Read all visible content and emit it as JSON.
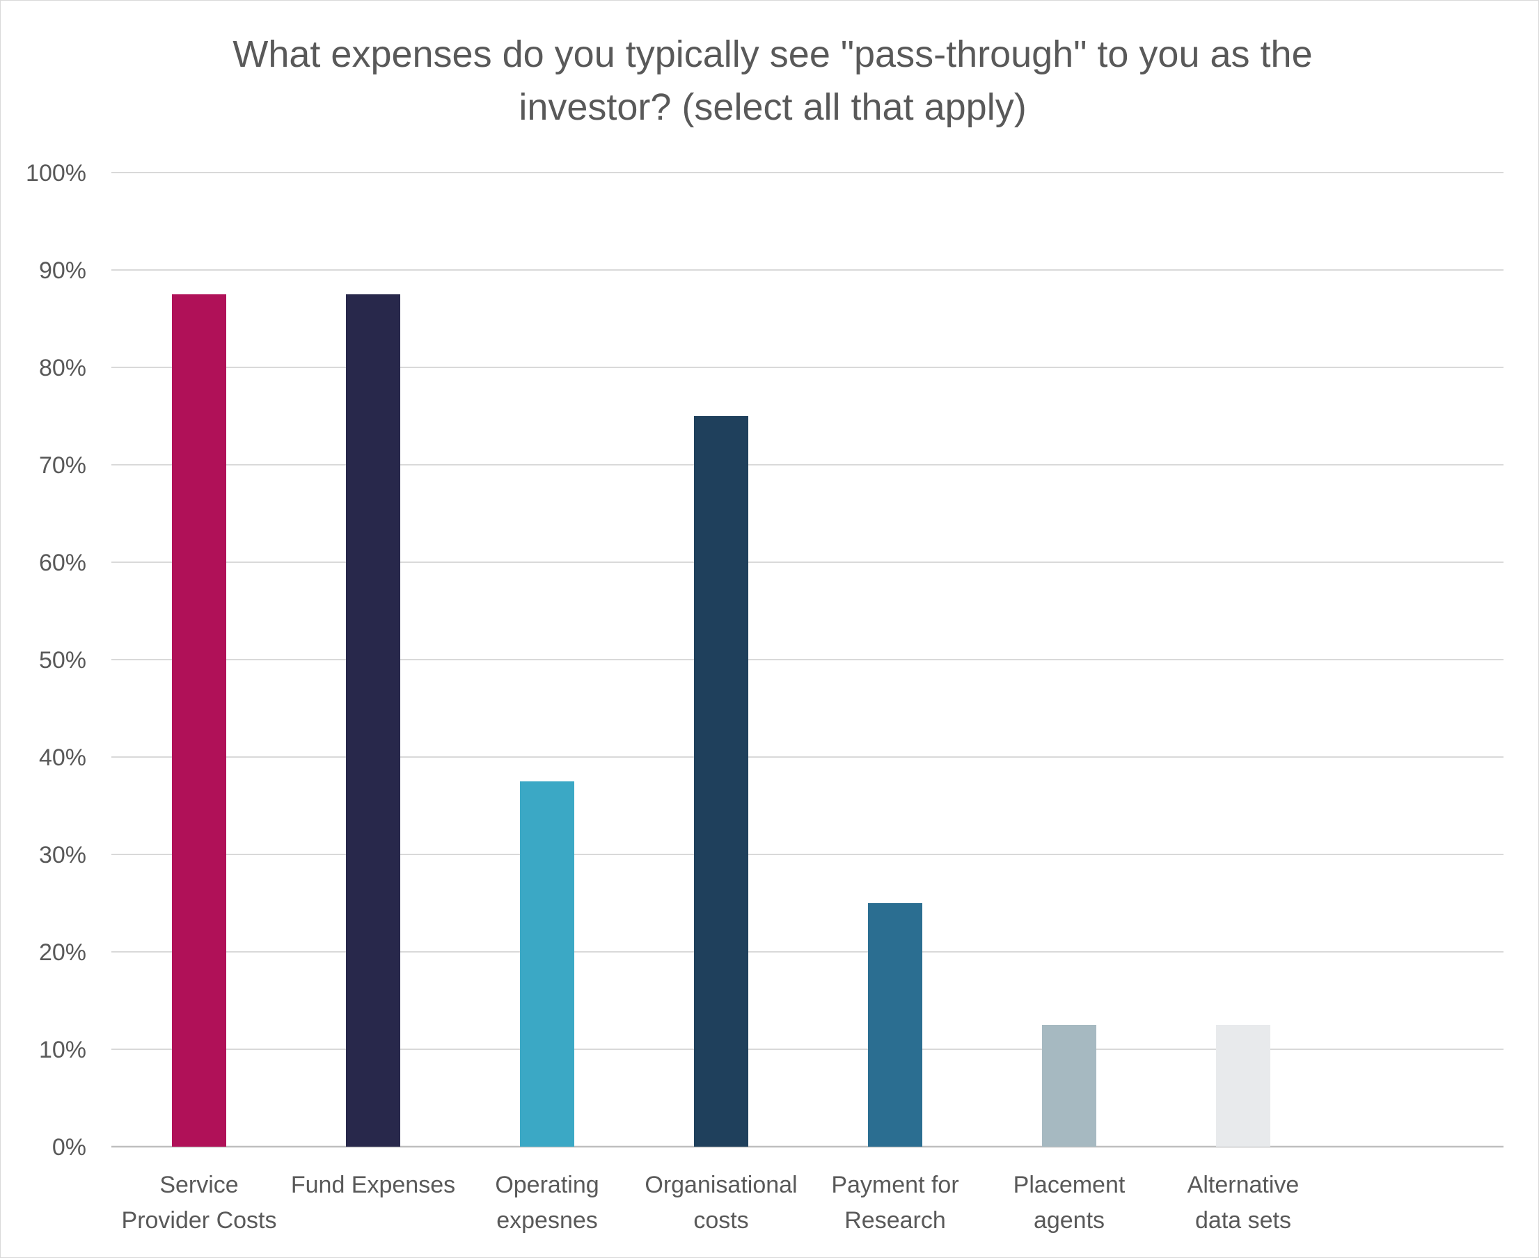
{
  "chart_data": {
    "type": "bar",
    "title": "What expenses do you typically see \"pass-through\" to you as the investor? (select all that apply)",
    "title_lines": [
      "What expenses do you typically see \"pass-through\" to you as the",
      "investor? (select all that apply)"
    ],
    "categories": [
      [
        "Service",
        "Provider Costs"
      ],
      [
        "Fund Expenses"
      ],
      [
        "Operating",
        "expesnes"
      ],
      [
        "Organisational",
        "costs"
      ],
      [
        "Payment for",
        "Research"
      ],
      [
        "Placement",
        "agents"
      ],
      [
        "Alternative",
        "data sets"
      ]
    ],
    "values": [
      0.875,
      0.875,
      0.375,
      0.75,
      0.25,
      0.125,
      0.125
    ],
    "colors": [
      "#b01158",
      "#28284b",
      "#3ba8c5",
      "#1f405c",
      "#2b6e91",
      "#a6b9c1",
      "#e8eaec"
    ],
    "ylim": [
      0,
      1
    ],
    "yticks": [
      "0%",
      "10%",
      "20%",
      "30%",
      "40%",
      "50%",
      "60%",
      "70%",
      "80%",
      "90%",
      "100%"
    ],
    "xlabel": "",
    "ylabel": "",
    "grid": true,
    "legend": "none"
  }
}
